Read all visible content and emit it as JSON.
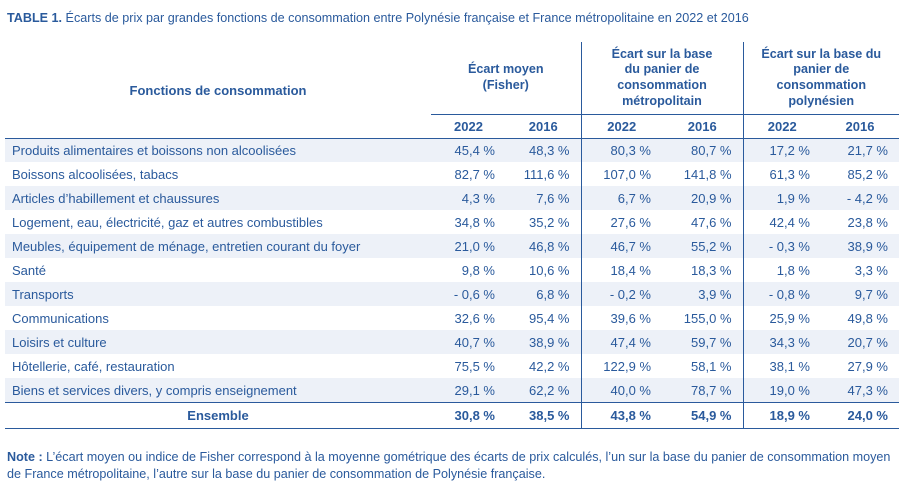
{
  "page": {
    "title_prefix": "TABLE 1.",
    "title_text": " Écarts de prix par grandes fonctions de consommation entre Polynésie française et France métropolitaine en 2022 et 2016"
  },
  "table": {
    "headers": {
      "functions": "Fonctions de consommation",
      "fisher": "Écart moyen\n(Fisher)",
      "metro": "Écart sur la base\ndu panier de\nconsommation\nmétropolitain",
      "poly": "Écart sur la base du\npanier de consommation\npolynésien"
    },
    "years": [
      "2022",
      "2016",
      "2022",
      "2016",
      "2022",
      "2016"
    ],
    "rows": [
      {
        "label": "Produits alimentaires et boissons non alcoolisées",
        "values": [
          "45,4 %",
          "48,3 %",
          "80,3 %",
          "80,7 %",
          "17,2 %",
          "21,7 %"
        ]
      },
      {
        "label": "Boissons alcoolisées, tabacs",
        "values": [
          "82,7 %",
          "111,6 %",
          "107,0 %",
          "141,8 %",
          "61,3 %",
          "85,2 %"
        ]
      },
      {
        "label": "Articles d’habillement et chaussures",
        "values": [
          "4,3 %",
          "7,6 %",
          "6,7 %",
          "20,9 %",
          "1,9 %",
          "- 4,2 %"
        ]
      },
      {
        "label": "Logement, eau, électricité, gaz et autres combustibles",
        "values": [
          "34,8 %",
          "35,2 %",
          "27,6 %",
          "47,6 %",
          "42,4 %",
          "23,8 %"
        ]
      },
      {
        "label": "Meubles, équipement de ménage, entretien courant du foyer",
        "values": [
          "21,0 %",
          "46,8 %",
          "46,7 %",
          "55,2 %",
          "- 0,3 %",
          "38,9 %"
        ]
      },
      {
        "label": "Santé",
        "values": [
          "9,8 %",
          "10,6 %",
          "18,4 %",
          "18,3 %",
          "1,8 %",
          "3,3 %"
        ]
      },
      {
        "label": "Transports",
        "values": [
          "- 0,6 %",
          "6,8 %",
          "- 0,2 %",
          "3,9 %",
          "- 0,8 %",
          "9,7 %"
        ]
      },
      {
        "label": "Communications",
        "values": [
          "32,6 %",
          "95,4 %",
          "39,6 %",
          "155,0 %",
          "25,9 %",
          "49,8 %"
        ]
      },
      {
        "label": "Loisirs et culture",
        "values": [
          "40,7 %",
          "38,9 %",
          "47,4 %",
          "59,7 %",
          "34,3 %",
          "20,7 %"
        ]
      },
      {
        "label": "Hôtellerie, café, restauration",
        "values": [
          "75,5 %",
          "42,2 %",
          "122,9 %",
          "58,1 %",
          "38,1 %",
          "27,9 %"
        ]
      },
      {
        "label": "Biens et services divers, y compris enseignement",
        "values": [
          "29,1 %",
          "62,2 %",
          "40,0 %",
          "78,7 %",
          "19,0 %",
          "47,3 %"
        ]
      }
    ],
    "total_row": {
      "label": "Ensemble",
      "values": [
        "30,8 %",
        "38,5 %",
        "43,8 %",
        "54,9 %",
        "18,9 %",
        "24,0 %"
      ]
    }
  },
  "note": {
    "prefix": "Note :",
    "text": " L’écart moyen ou indice de Fisher correspond à la moyenne gométrique des écarts de prix calculés, l’un sur la base du panier de consommation moyen de France métropolitaine, l’autre sur la base du panier de consommation de Polynésie française."
  }
}
